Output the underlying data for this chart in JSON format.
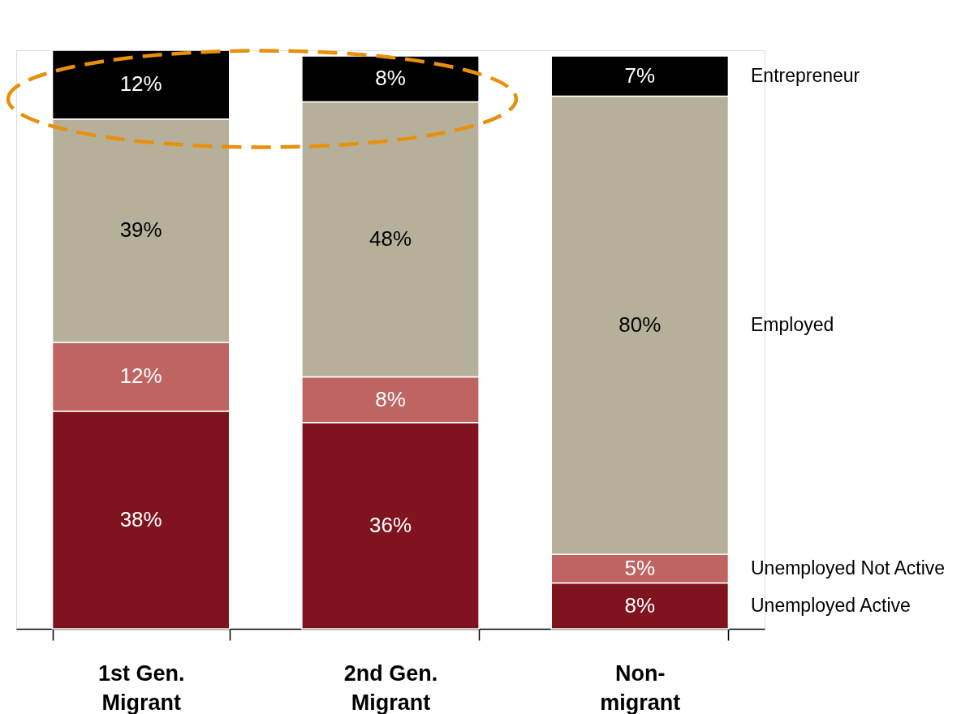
{
  "chart_data": {
    "type": "bar",
    "stacked": true,
    "categories": [
      "1st Gen.\nMigrant",
      "2nd Gen.\nMigrant",
      "Non-\nmigrant"
    ],
    "series": [
      {
        "name": "Unemployed Active",
        "color": "#7f141f",
        "values": [
          38,
          36,
          8
        ],
        "value_labels": [
          "38%",
          "36%",
          "8%"
        ]
      },
      {
        "name": "Unemployed Not Active",
        "color": "#c06461",
        "values": [
          12,
          8,
          5
        ],
        "value_labels": [
          "12%",
          "8%",
          "5%"
        ]
      },
      {
        "name": "Employed",
        "color": "#b6b09a",
        "values": [
          39,
          48,
          80
        ],
        "value_labels": [
          "39%",
          "48%",
          "80%"
        ]
      },
      {
        "name": "Entrepreneur",
        "color": "#000000",
        "values": [
          12,
          8,
          7
        ],
        "value_labels": [
          "12%",
          "8%",
          "7%"
        ]
      }
    ]
  }
}
